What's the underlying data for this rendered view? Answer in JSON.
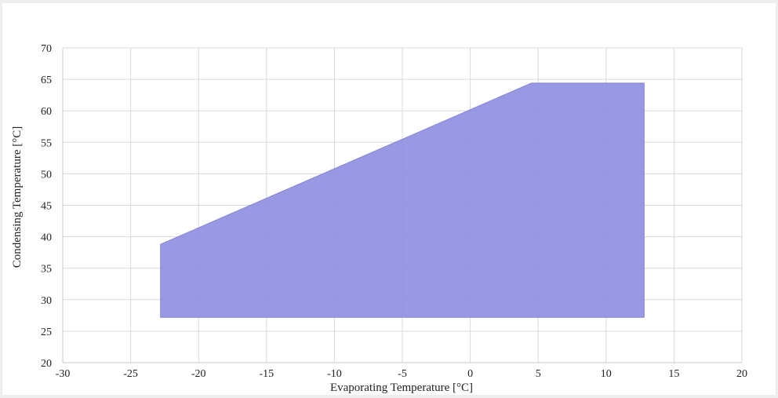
{
  "chart_data": {
    "type": "area",
    "title": "",
    "xlabel": "Evaporating Temperature [°C]",
    "ylabel": "Condensing Temperature [°C]",
    "xlim": [
      -30,
      20
    ],
    "ylim": [
      20,
      70
    ],
    "xticks": [
      -30,
      -25,
      -20,
      -15,
      -10,
      -5,
      0,
      5,
      10,
      15,
      20
    ],
    "yticks": [
      20,
      25,
      30,
      35,
      40,
      45,
      50,
      55,
      60,
      65,
      70
    ],
    "grid": true,
    "series": [
      {
        "fill_color": "#8f8fe1",
        "border_color": "#8484d8",
        "polygon": [
          {
            "x": -22.8,
            "y": 27.2
          },
          {
            "x": -22.8,
            "y": 38.8
          },
          {
            "x": 4.5,
            "y": 64.4
          },
          {
            "x": 12.8,
            "y": 64.4
          },
          {
            "x": 12.8,
            "y": 27.2
          }
        ]
      }
    ],
    "colors": {
      "grid": "#d9d9d9",
      "axis": "#c8c8c8",
      "card": "#ffffff",
      "background": "#eeeeee"
    }
  }
}
